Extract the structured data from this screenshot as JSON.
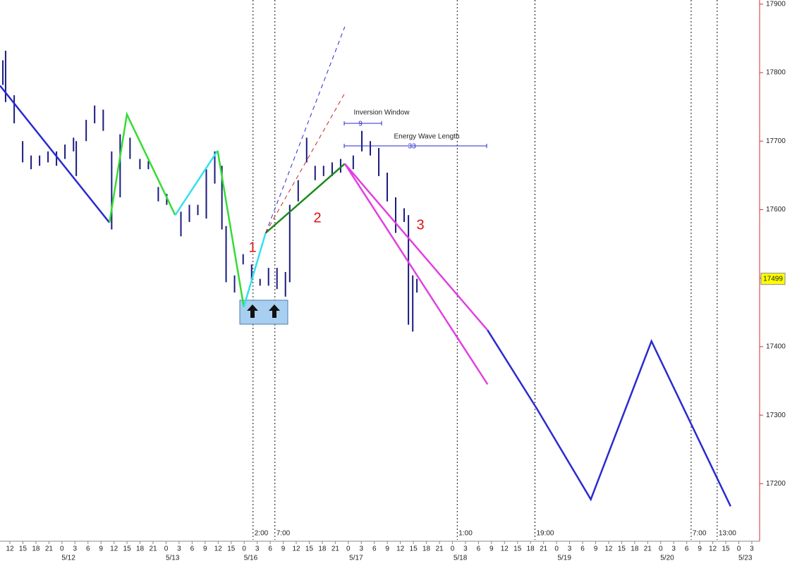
{
  "chart_data": {
    "type": "line",
    "xlim": [
      -0.76,
      57.6
    ],
    "ylim": [
      17116,
      17906
    ],
    "yticks": [
      17200,
      17300,
      17400,
      17500,
      17600,
      17700,
      17800,
      17900
    ],
    "xticks": [
      {
        "value": 0,
        "label": "12"
      },
      {
        "value": 1,
        "label": "15"
      },
      {
        "value": 2,
        "label": "18"
      },
      {
        "value": 3,
        "label": "21"
      },
      {
        "value": 4,
        "label": "0"
      },
      {
        "value": 5,
        "label": "3"
      },
      {
        "value": 6,
        "label": "6"
      },
      {
        "value": 7,
        "label": "9"
      },
      {
        "value": 8,
        "label": "12"
      },
      {
        "value": 9,
        "label": "15"
      },
      {
        "value": 10,
        "label": "18"
      },
      {
        "value": 11,
        "label": "21"
      },
      {
        "value": 12,
        "label": "0"
      },
      {
        "value": 13,
        "label": "3"
      },
      {
        "value": 14,
        "label": "6"
      },
      {
        "value": 15,
        "label": "9"
      },
      {
        "value": 16,
        "label": "12"
      },
      {
        "value": 17,
        "label": "15"
      },
      {
        "value": 18,
        "label": "0"
      },
      {
        "value": 19,
        "label": "3"
      },
      {
        "value": 20,
        "label": "6"
      },
      {
        "value": 21,
        "label": "9"
      },
      {
        "value": 22,
        "label": "12"
      },
      {
        "value": 23,
        "label": "15"
      },
      {
        "value": 24,
        "label": "18"
      },
      {
        "value": 25,
        "label": "21"
      },
      {
        "value": 26,
        "label": "0"
      },
      {
        "value": 27,
        "label": "3"
      },
      {
        "value": 28,
        "label": "6"
      },
      {
        "value": 29,
        "label": "9"
      },
      {
        "value": 30,
        "label": "12"
      },
      {
        "value": 31,
        "label": "15"
      },
      {
        "value": 32,
        "label": "18"
      },
      {
        "value": 33,
        "label": "21"
      },
      {
        "value": 34,
        "label": "0"
      },
      {
        "value": 35,
        "label": "3"
      },
      {
        "value": 36,
        "label": "6"
      },
      {
        "value": 37,
        "label": "9"
      },
      {
        "value": 38,
        "label": "12"
      },
      {
        "value": 39,
        "label": "15"
      },
      {
        "value": 40,
        "label": "18"
      },
      {
        "value": 41,
        "label": "21"
      },
      {
        "value": 42,
        "label": "0"
      },
      {
        "value": 43,
        "label": "3"
      },
      {
        "value": 44,
        "label": "6"
      },
      {
        "value": 45,
        "label": "9"
      },
      {
        "value": 46,
        "label": "12"
      },
      {
        "value": 47,
        "label": "15"
      },
      {
        "value": 48,
        "label": "18"
      },
      {
        "value": 49,
        "label": "21"
      },
      {
        "value": 50,
        "label": "0"
      },
      {
        "value": 51,
        "label": "3"
      },
      {
        "value": 52,
        "label": "6"
      },
      {
        "value": 53,
        "label": "9"
      },
      {
        "value": 54,
        "label": "12"
      },
      {
        "value": 55,
        "label": "15"
      },
      {
        "value": 56,
        "label": "0"
      },
      {
        "value": 57,
        "label": "3"
      }
    ],
    "dates": [
      {
        "value": 4.5,
        "label": "5/12"
      },
      {
        "value": 12.5,
        "label": "5/13"
      },
      {
        "value": 18.5,
        "label": "5/16"
      },
      {
        "value": 26.6,
        "label": "5/17"
      },
      {
        "value": 34.6,
        "label": "5/18"
      },
      {
        "value": 42.6,
        "label": "5/19"
      },
      {
        "value": 50.5,
        "label": "5/20"
      },
      {
        "value": 56.5,
        "label": "5/23"
      }
    ],
    "markers": [
      {
        "value": 18.68,
        "label": "2:00"
      },
      {
        "value": 20.36,
        "label": "7:00"
      },
      {
        "value": 34.37,
        "label": "1:00"
      },
      {
        "value": 40.34,
        "label": "19:00"
      },
      {
        "value": 52.34,
        "label": "7:00"
      },
      {
        "value": 54.34,
        "label": "13:00"
      }
    ],
    "last_price": 17499,
    "bars": {
      "color": "#1a1a80",
      "x": [
        -0.54,
        -0.33,
        0.33,
        0.98,
        1.63,
        2.28,
        2.93,
        3.58,
        4.23,
        4.89,
        5.1,
        5.86,
        6.51,
        7.17,
        7.82,
        8.47,
        9.23,
        9.99,
        10.64,
        11.4,
        12.05,
        13.14,
        13.79,
        14.44,
        15.09,
        15.74,
        16.29,
        16.61,
        17.26,
        17.92,
        18.57,
        19.22,
        19.87,
        20.52,
        21.17,
        21.5,
        22.15,
        22.8,
        23.45,
        24.1,
        24.76,
        25.41,
        26.38,
        27.04,
        27.69,
        28.34,
        28.99,
        29.64,
        30.29,
        30.62,
        30.95,
        31.27
      ],
      "high": [
        17818,
        17832,
        17767,
        17700,
        17679,
        17679,
        17685,
        17685,
        17695,
        17705,
        17700,
        17731,
        17752,
        17746,
        17685,
        17710,
        17705,
        17674,
        17671,
        17633,
        17623,
        17597,
        17607,
        17607,
        17659,
        17685,
        17664,
        17576,
        17504,
        17535,
        17520,
        17499,
        17515,
        17515,
        17509,
        17607,
        17643,
        17705,
        17664,
        17664,
        17669,
        17674,
        17679,
        17715,
        17700,
        17690,
        17654,
        17618,
        17602,
        17592,
        17504,
        17499
      ],
      "low": [
        17782,
        17757,
        17726,
        17669,
        17659,
        17664,
        17669,
        17664,
        17674,
        17685,
        17649,
        17700,
        17726,
        17715,
        17571,
        17618,
        17674,
        17659,
        17659,
        17612,
        17607,
        17561,
        17582,
        17592,
        17587,
        17638,
        17571,
        17494,
        17479,
        17520,
        17494,
        17489,
        17489,
        17484,
        17473,
        17494,
        17612,
        17669,
        17643,
        17649,
        17649,
        17654,
        17659,
        17685,
        17679,
        17649,
        17612,
        17566,
        17582,
        17432,
        17422,
        17479
      ]
    },
    "series": [
      {
        "color": "#2a2ad0",
        "style": "solid",
        "x": [
          -0.76,
          7.65
        ],
        "values": [
          17781,
          17581
        ]
      },
      {
        "color": "#33dd33",
        "style": "solid",
        "x": [
          7.65,
          8.99,
          12.7
        ],
        "values": [
          17581,
          17739,
          17592
        ]
      },
      {
        "color": "#33e0ee",
        "style": "solid",
        "x": [
          12.7,
          15.96
        ],
        "values": [
          17592,
          17686
        ]
      },
      {
        "color": "#33dd33",
        "style": "solid",
        "x": [
          15.96,
          17.97
        ],
        "values": [
          17686,
          17458
        ]
      },
      {
        "color": "#33e0ee",
        "style": "solid",
        "x": [
          17.97,
          19.65
        ],
        "values": [
          17458,
          17566
        ]
      },
      {
        "color": "#1a8a1a",
        "style": "solid",
        "x": [
          19.65,
          25.73
        ],
        "values": [
          17566,
          17667
        ]
      },
      {
        "color": "#e040e0",
        "style": "solid",
        "x": [
          25.73,
          36.7
        ],
        "values": [
          17667,
          17345
        ]
      },
      {
        "color": "#e040e0",
        "style": "solid",
        "x": [
          25.73,
          36.7
        ],
        "values": [
          17667,
          17424
        ]
      },
      {
        "color": "#2a2ad0",
        "style": "solid",
        "x": [
          36.7,
          40.5,
          44.63,
          49.29,
          55.37
        ],
        "values": [
          17424,
          17309,
          17177,
          17408,
          17167
        ]
      },
      {
        "color": "#2a2ad0",
        "style": "dashed",
        "x": [
          19.65,
          25.73
        ],
        "values": [
          17566,
          17867
        ]
      },
      {
        "color": "#d02020",
        "style": "dashed",
        "x": [
          19.65,
          25.73
        ],
        "values": [
          17566,
          17770
        ]
      }
    ],
    "annotations": [
      {
        "text": "1"
      },
      {
        "text": "2"
      },
      {
        "text": "3"
      },
      {
        "text": "Inversion Window"
      },
      {
        "text": "9"
      },
      {
        "text": "Energy Wave Length"
      },
      {
        "text": "33"
      }
    ]
  }
}
